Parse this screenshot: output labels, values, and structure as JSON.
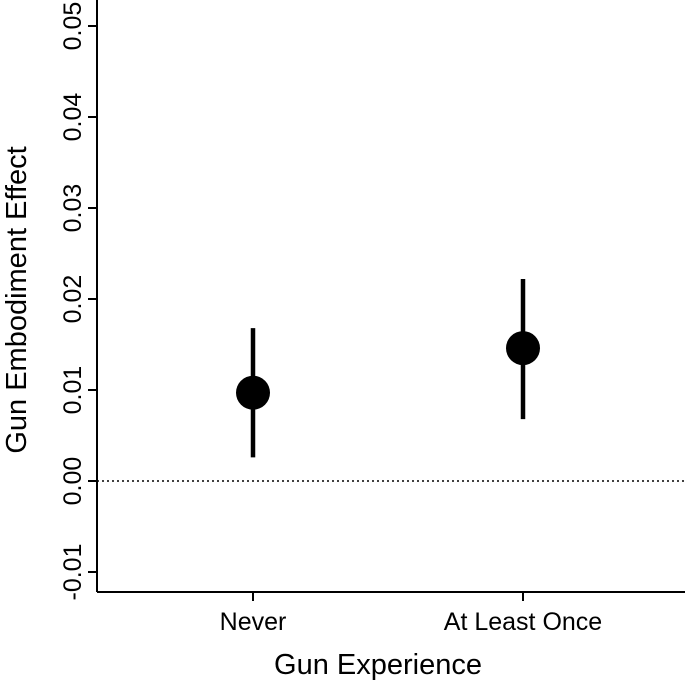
{
  "chart_data": {
    "type": "scatter",
    "xlabel": "Gun Experience",
    "ylabel": "Gun Embodiment Effect",
    "categories": [
      "Never",
      "At Least Once"
    ],
    "points": [
      {
        "category": "Never",
        "estimate": 0.0097,
        "lower": 0.0026,
        "upper": 0.0168
      },
      {
        "category": "At Least Once",
        "estimate": 0.0146,
        "lower": 0.0068,
        "upper": 0.0222
      }
    ],
    "ylim": [
      -0.013,
      0.0515
    ],
    "yticks": [
      -0.01,
      0.0,
      0.01,
      0.02,
      0.03,
      0.04,
      0.05
    ],
    "ytick_labels": [
      "-0.01",
      "0.00",
      "0.01",
      "0.02",
      "0.03",
      "0.04",
      "0.05"
    ],
    "reference_line": {
      "y": 0,
      "style": "dotted"
    },
    "grid": false,
    "legend": "none",
    "colors": {
      "marker": "#000000",
      "axis": "#000000"
    }
  }
}
